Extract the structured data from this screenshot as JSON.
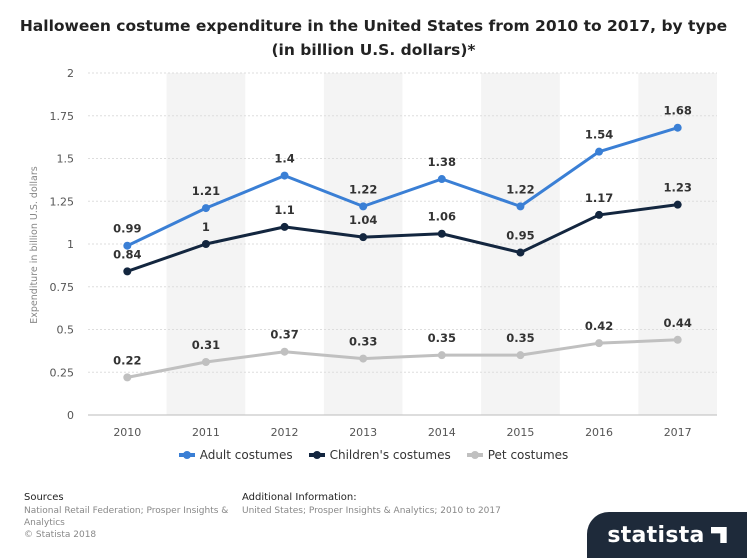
{
  "chart_data": {
    "type": "line",
    "title": "Halloween costume expenditure in the United States from 2010 to 2017, by type (in billion U.S. dollars)*",
    "ylabel": "Expenditure in billion U.S. dollars",
    "xlabel": "",
    "categories": [
      "2010",
      "2011",
      "2012",
      "2013",
      "2014",
      "2015",
      "2016",
      "2017"
    ],
    "ylim": [
      0,
      2
    ],
    "yticks": [
      "0",
      "0.25",
      "0.5",
      "0.75",
      "1",
      "1.25",
      "1.5",
      "1.75",
      "2"
    ],
    "grid": true,
    "legend_position": "bottom",
    "series": [
      {
        "name": "Adult costumes",
        "color": "#3a7fd5",
        "values": [
          0.99,
          1.21,
          1.4,
          1.22,
          1.38,
          1.22,
          1.54,
          1.68
        ],
        "labels": [
          "0.99",
          "1.21",
          "1.4",
          "1.22",
          "1.38",
          "1.22",
          "1.54",
          "1.68"
        ]
      },
      {
        "name": "Children's costumes",
        "color": "#13263f",
        "values": [
          0.84,
          1,
          1.1,
          1.04,
          1.06,
          0.95,
          1.17,
          1.23
        ],
        "labels": [
          "0.84",
          "1",
          "1.1",
          "1.04",
          "1.06",
          "0.95",
          "1.17",
          "1.23"
        ]
      },
      {
        "name": "Pet costumes",
        "color": "#c0c0c0",
        "values": [
          0.22,
          0.31,
          0.37,
          0.33,
          0.35,
          0.35,
          0.42,
          0.44
        ],
        "labels": [
          "0.22",
          "0.31",
          "0.37",
          "0.33",
          "0.35",
          "0.35",
          "0.42",
          "0.44"
        ]
      }
    ]
  },
  "footer": {
    "sources_title": "Sources",
    "sources_text": "National Retail Federation; Prosper Insights & Analytics",
    "copyright": "© Statista 2018",
    "info_title": "Additional Information:",
    "info_text": "United States; Prosper Insights & Analytics; 2010 to 2017"
  },
  "brand": {
    "name": "statista"
  }
}
